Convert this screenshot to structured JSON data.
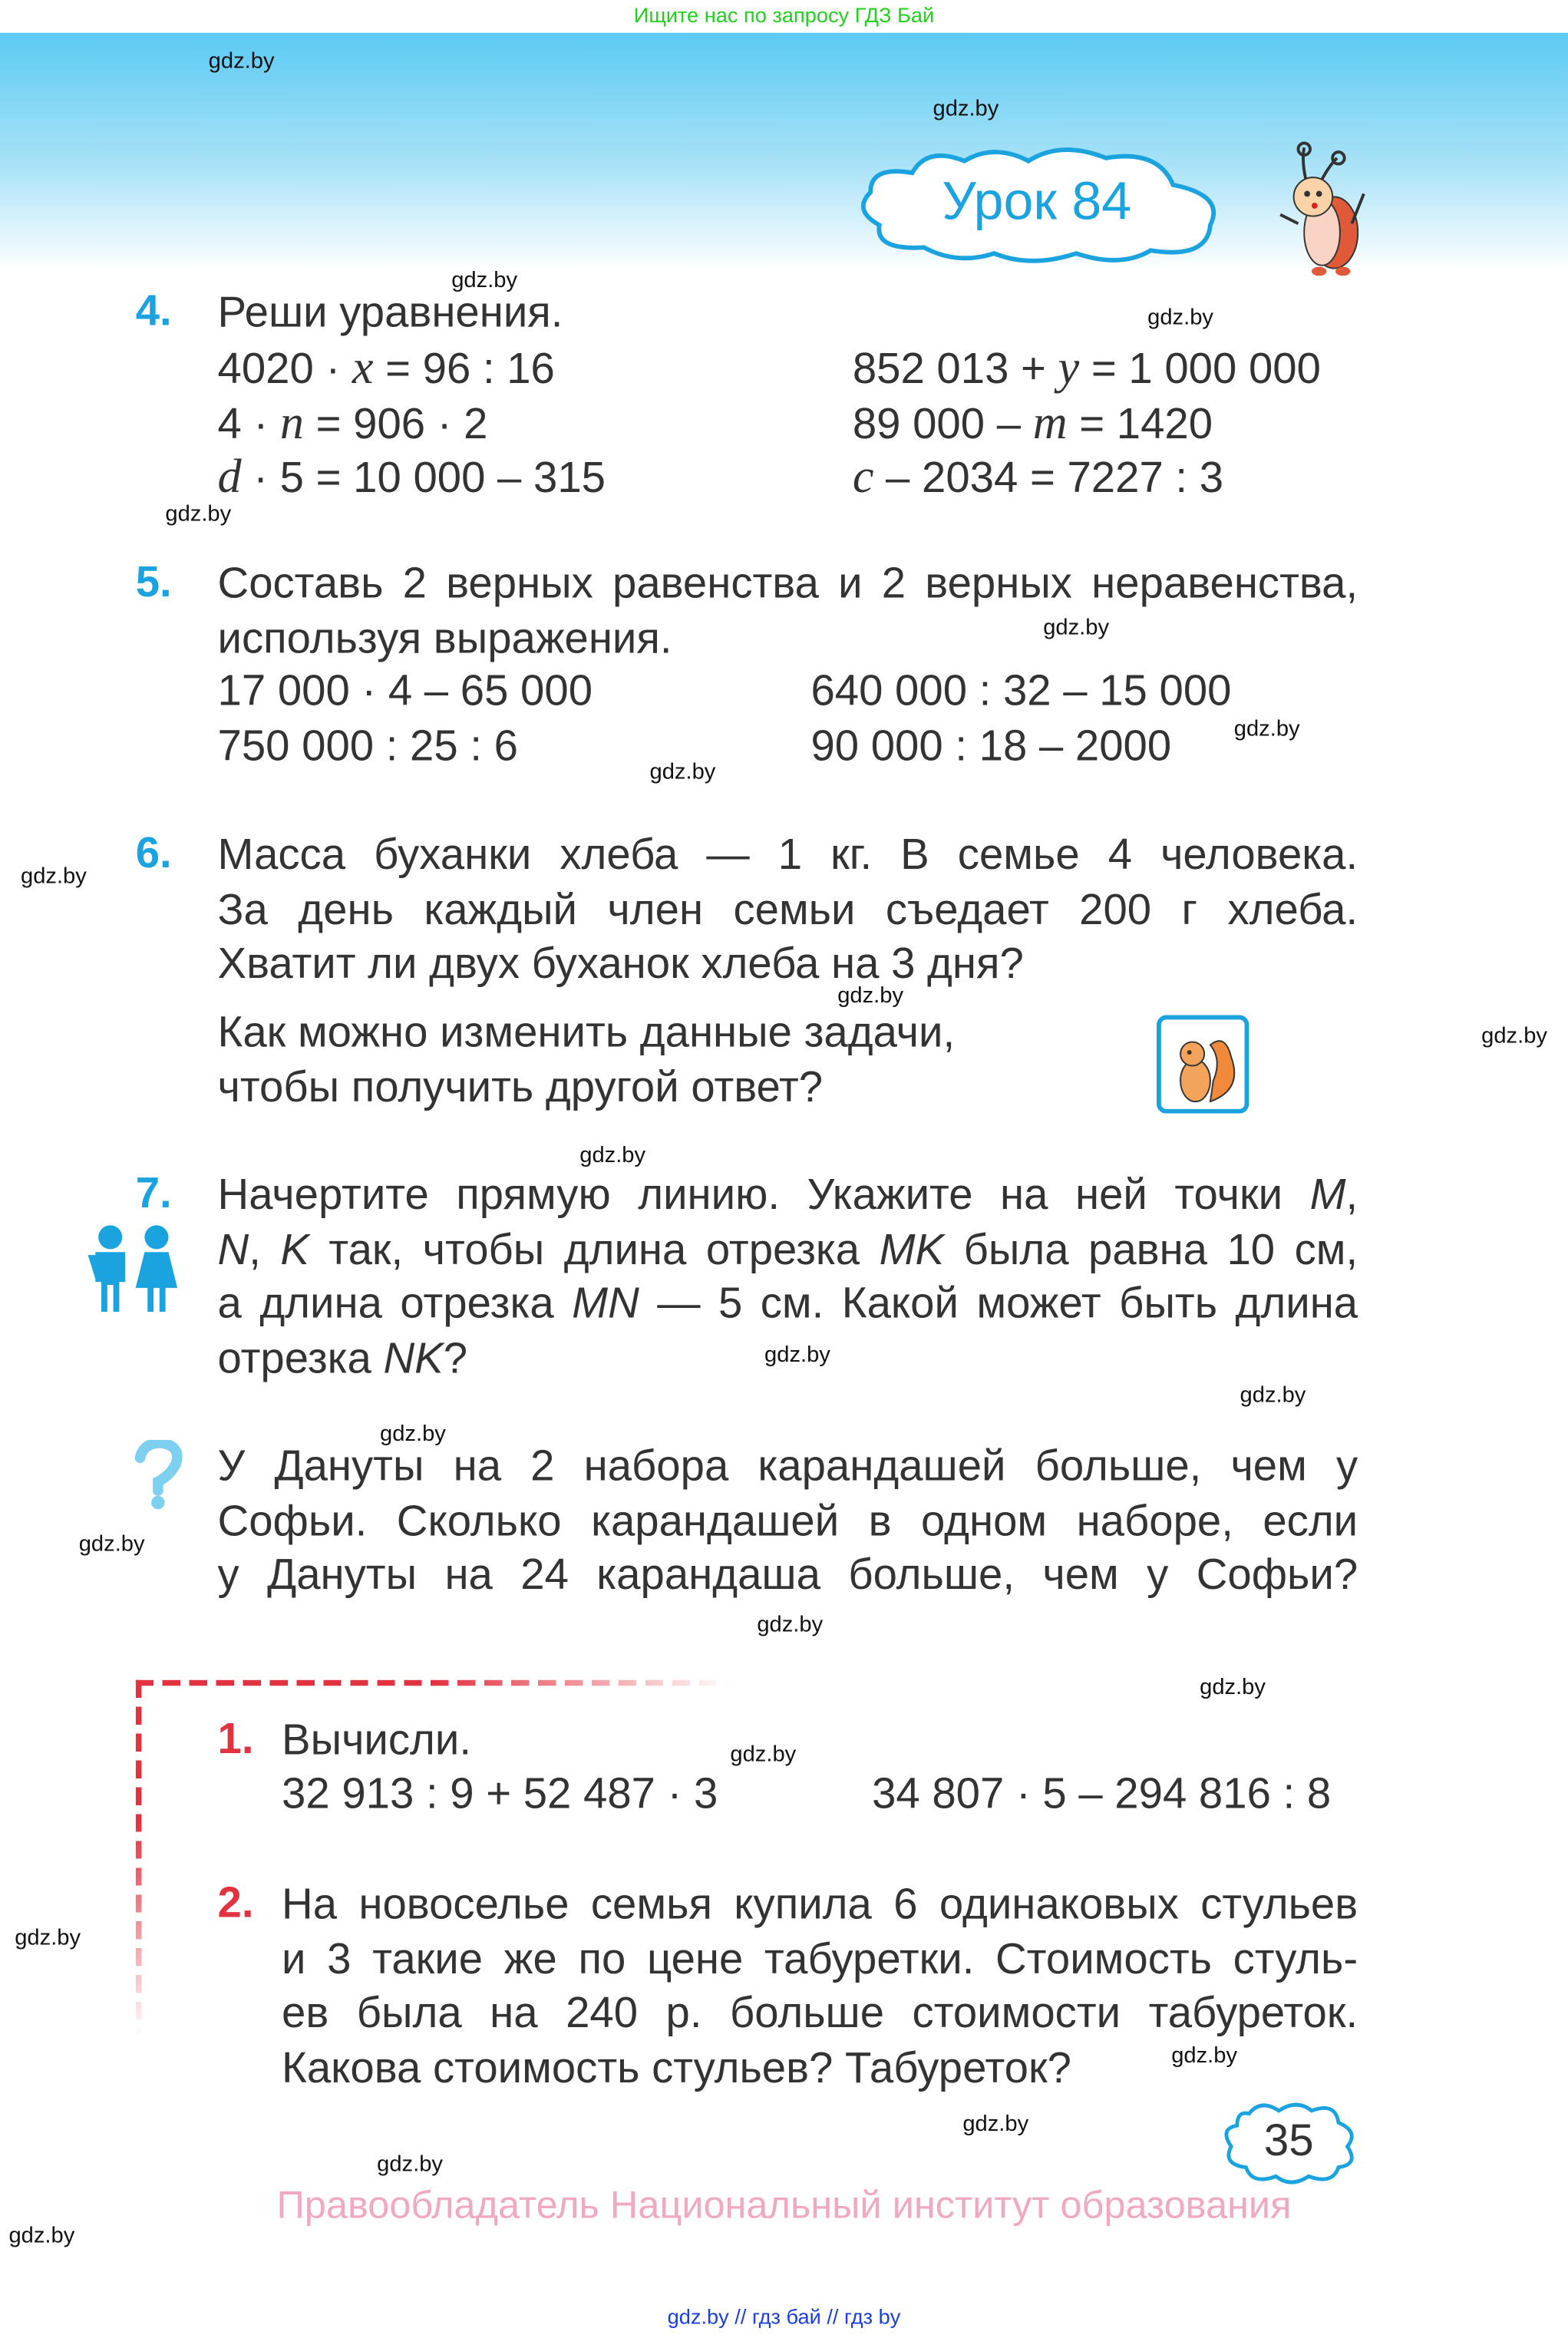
{
  "top_banner": "Ищите нас по запросу ГДЗ Бай",
  "lesson_title": "Урок 84",
  "watermarks": [
    "gdz.by",
    "gdz.by",
    "gdz.by",
    "gdz.by",
    "gdz.by",
    "gdz.by",
    "gdz.by",
    "gdz.by",
    "gdz.by",
    "gdz.by",
    "gdz.by",
    "gdz.by",
    "gdz.by",
    "gdz.by",
    "gdz.by",
    "gdz.by",
    "gdz.by",
    "gdz.by",
    "gdz.by",
    "gdz.by",
    "gdz.by",
    "gdz.by",
    "gdz.by",
    "gdz.by"
  ],
  "colors": {
    "accent_blue": "#1ba3df",
    "accent_red": "#e3323f",
    "watermark_green": "#22d11e",
    "copyright_pink": "#f0a9c0"
  },
  "tasks": {
    "t4": {
      "number": "4.",
      "heading": "Реши уравнения.",
      "left": [
        [
          {
            "t": "4020 · "
          },
          {
            "t": "x",
            "v": 1
          },
          {
            "t": " = 96 : 16"
          }
        ],
        [
          {
            "t": "4 · "
          },
          {
            "t": "n",
            "v": 1
          },
          {
            "t": " = 906 · 2"
          }
        ],
        [
          {
            "t": "d",
            "v": 1
          },
          {
            "t": " · 5 = 10 000 – 315"
          }
        ]
      ],
      "right": [
        [
          {
            "t": "852 013 + "
          },
          {
            "t": "y",
            "v": 1
          },
          {
            "t": " = 1 000 000"
          }
        ],
        [
          {
            "t": "89 000 – "
          },
          {
            "t": "m",
            "v": 1
          },
          {
            "t": " = 1420"
          }
        ],
        [
          {
            "t": "c",
            "v": 1
          },
          {
            "t": " – 2034 = 7227 : 3"
          }
        ]
      ]
    },
    "t5": {
      "number": "5.",
      "lines": [
        [
          {
            "t": "Составь 2 верных равенства и 2 верных неравенства,"
          }
        ],
        [
          {
            "t": "используя выражения."
          }
        ]
      ],
      "left": [
        [
          {
            "t": "17 000 · 4 – 65 000"
          }
        ],
        [
          {
            "t": "750 000 : 25 : 6"
          }
        ]
      ],
      "right": [
        [
          {
            "t": "640 000 : 32 – 15 000"
          }
        ],
        [
          {
            "t": "90 000 : 18 – 2000"
          }
        ]
      ]
    },
    "t6": {
      "number": "6.",
      "lines": [
        [
          {
            "t": "Масса буханки хлеба — 1 кг. В семье 4 человека."
          }
        ],
        [
          {
            "t": "За день каждый член семьи съедает 200 г хлеба."
          }
        ],
        [
          {
            "t": "Хватит ли двух буханок хлеба на 3 дня?"
          }
        ]
      ],
      "extra": [
        [
          {
            "t": "Как можно изменить данные задачи,"
          }
        ],
        [
          {
            "t": "чтобы получить другой ответ?"
          }
        ]
      ],
      "icon": "squirrel-icon"
    },
    "t7": {
      "number": "7.",
      "icon": "children-icon",
      "lines": [
        [
          {
            "t": "Начертите прямую линию. Укажите на ней точки "
          },
          {
            "t": "M",
            "i": 1
          },
          {
            "t": ","
          }
        ],
        [
          {
            "t": "N",
            "i": 1
          },
          {
            "t": ", "
          },
          {
            "t": "K",
            "i": 1
          },
          {
            "t": " так, чтобы длина отрезка "
          },
          {
            "t": "MK",
            "i": 1
          },
          {
            "t": " была равна 10 см,"
          }
        ],
        [
          {
            "t": "а длина отрезка "
          },
          {
            "t": "MN",
            "i": 1
          },
          {
            "t": " — 5 см. Какой может быть длина"
          }
        ],
        [
          {
            "t": "отрезка "
          },
          {
            "t": "NK",
            "i": 1
          },
          {
            "t": "?"
          }
        ]
      ]
    },
    "tq": {
      "icon": "question-icon",
      "lines": [
        [
          {
            "t": "У Дануты на 2 набора карандашей больше, чем у"
          }
        ],
        [
          {
            "t": "Софьи. Сколько карандашей в одном наборе, если"
          }
        ],
        [
          {
            "t": "у Дануты на 24 карандаша больше, чем у Софьи?"
          }
        ]
      ]
    },
    "r1": {
      "number": "1.",
      "heading": "Вычисли.",
      "left": [
        [
          {
            "t": "32 913 : 9 + 52 487 · 3"
          }
        ]
      ],
      "right": [
        [
          {
            "t": "34 807 · 5 – 294 816 : 8"
          }
        ]
      ]
    },
    "r2": {
      "number": "2.",
      "lines": [
        [
          {
            "t": "На новоселье семья купила 6 одинаковых стульев"
          }
        ],
        [
          {
            "t": "и 3 такие же по цене табуретки. Стоимость стуль-"
          }
        ],
        [
          {
            "t": "ев была на 240 р. больше стоимости табуреток."
          }
        ],
        [
          {
            "t": "Какова стоимость стульев? Табуреток?"
          }
        ]
      ]
    }
  },
  "page_number": "35",
  "copyright": "Правообладатель Национальный институт образования",
  "footer": "gdz.by  //  гдз бай  //  гдз by"
}
